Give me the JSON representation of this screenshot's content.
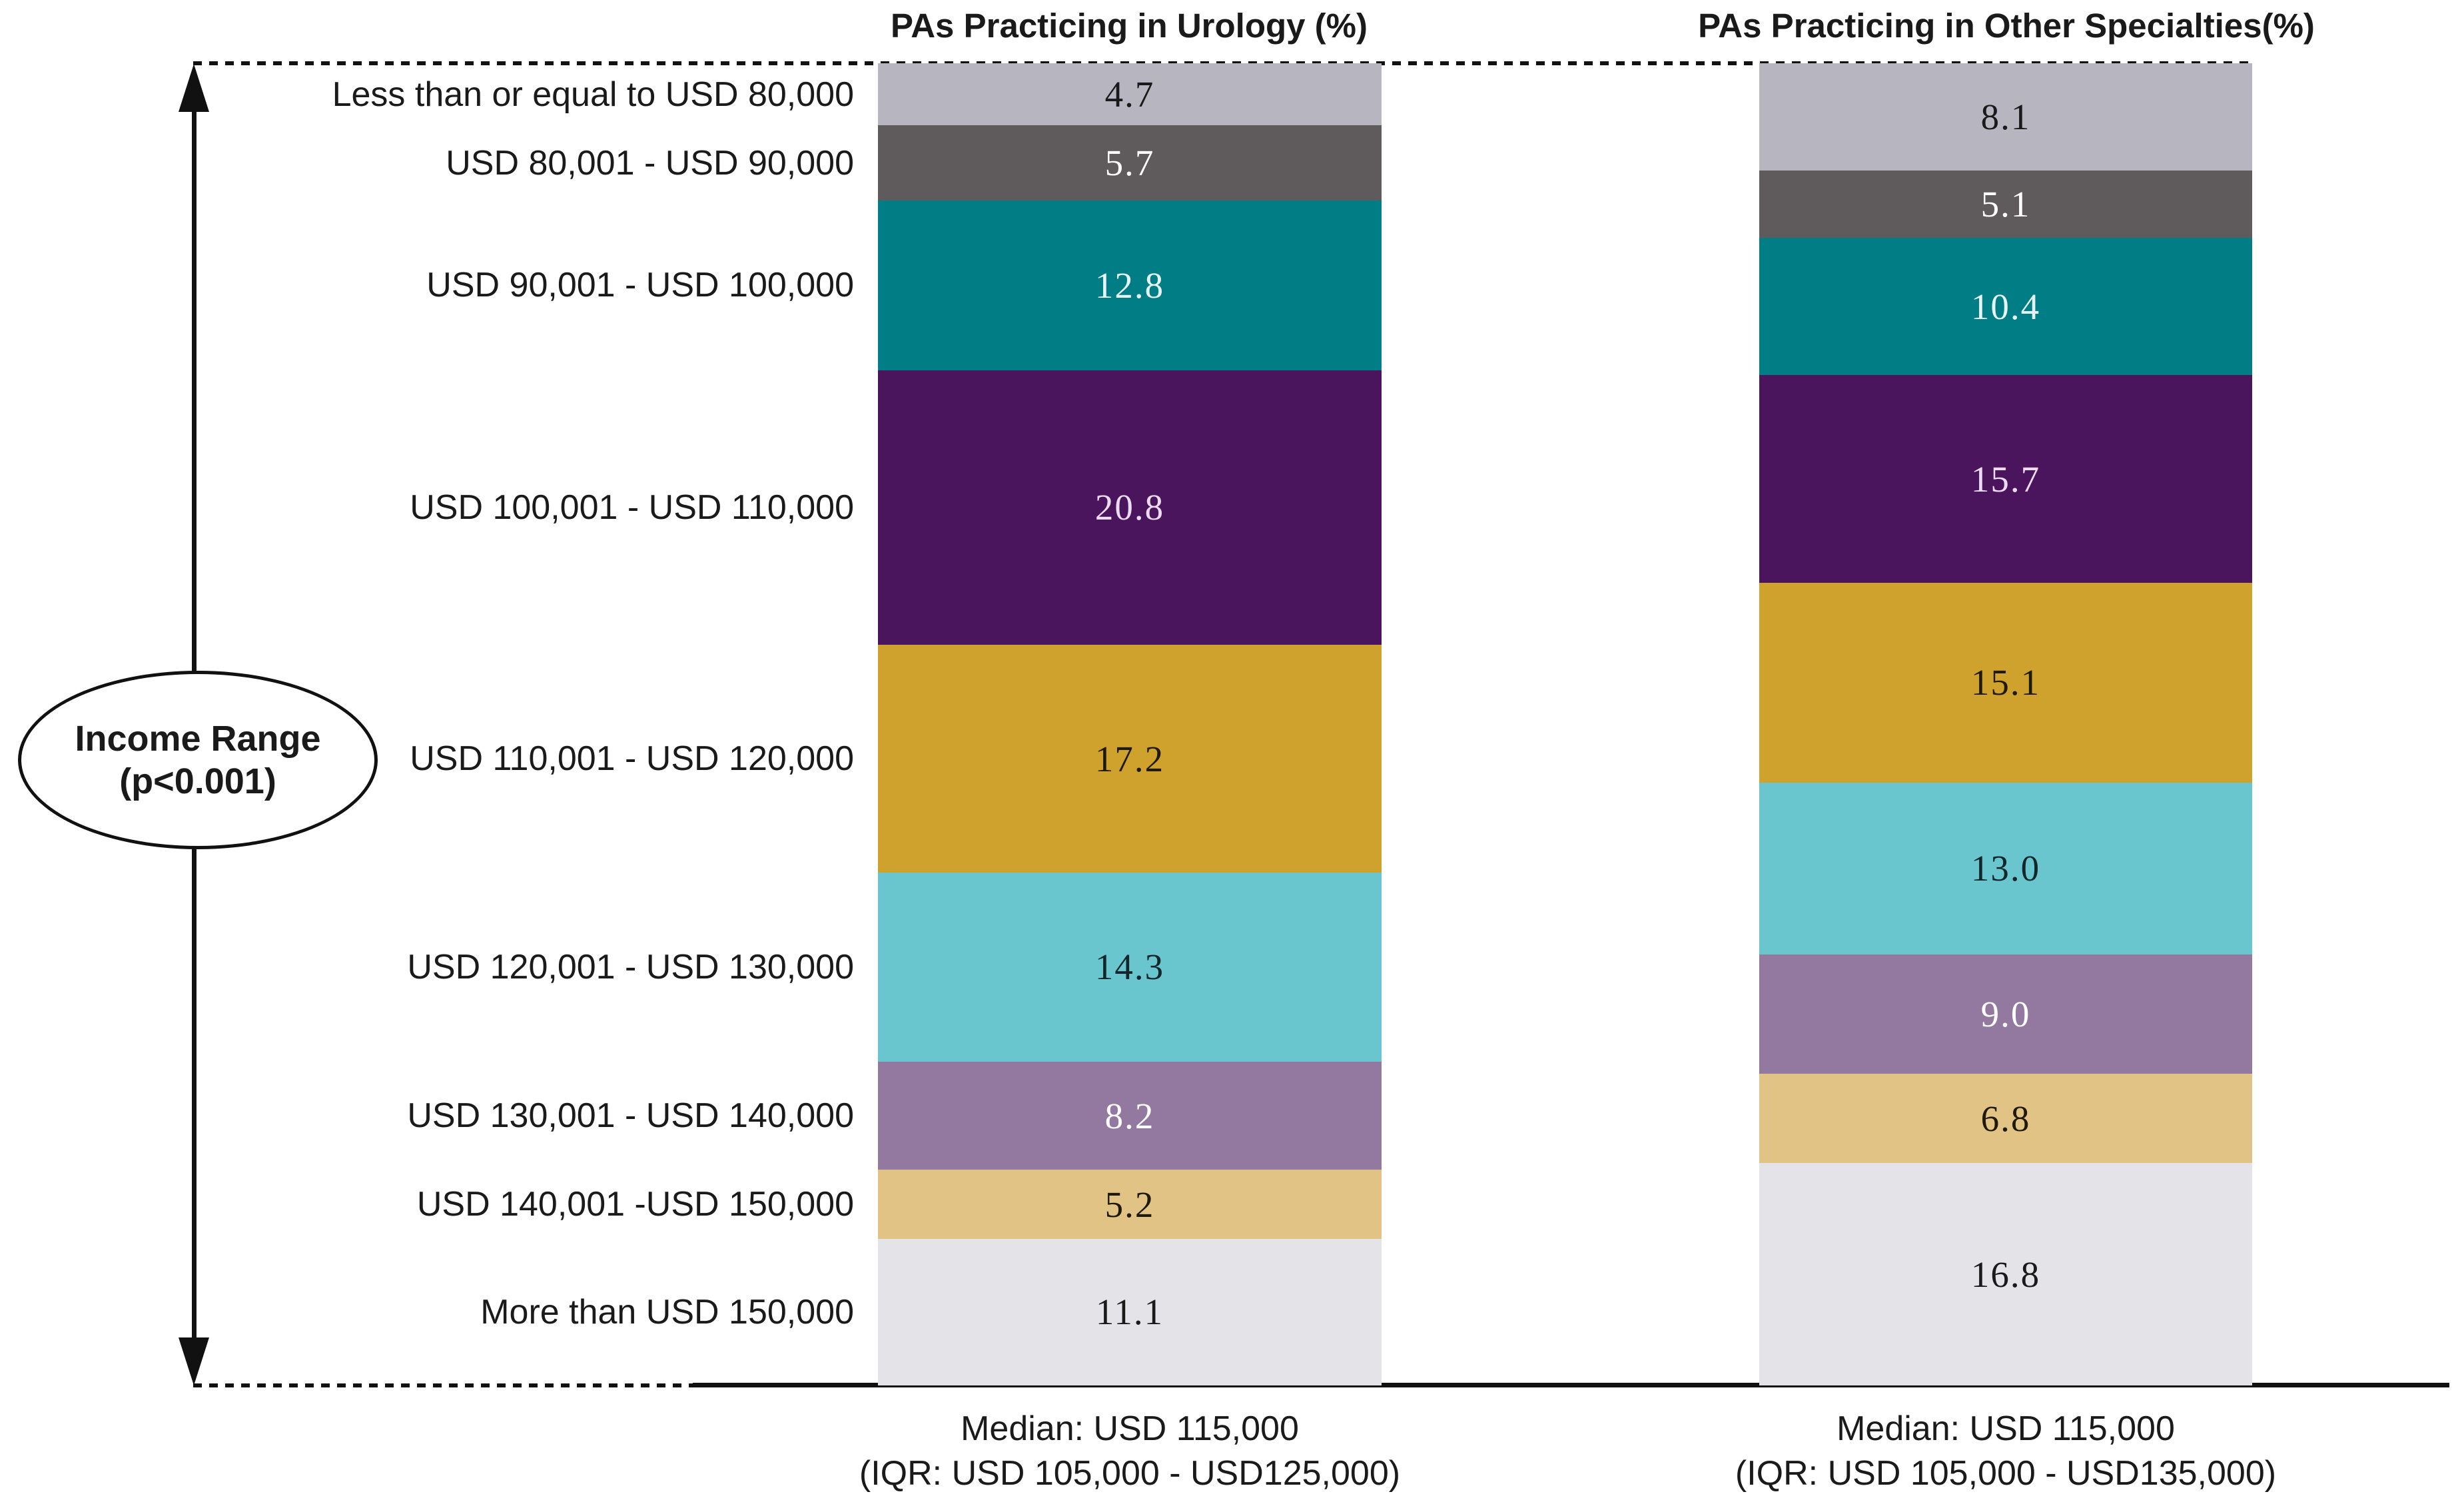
{
  "chart_data": {
    "type": "bar",
    "subtype": "100%-stacked-columns",
    "title": "",
    "xlabel": "",
    "ylabel": "Income Range (p<0.001)",
    "ylim": [
      0,
      100
    ],
    "grid": false,
    "legend": false,
    "row_header": {
      "line1": "Income Range",
      "line2": "(p<0.001)"
    },
    "categories": [
      "Less than or equal to USD 80,000",
      "USD 80,001 - USD 90,000",
      "USD 90,001 - USD 100,000",
      "USD 100,001 - USD 110,000",
      "USD 110,001 - USD 120,000",
      "USD 120,001 - USD 130,000",
      "USD 130,001 - USD 140,000",
      "USD 140,001 -USD 150,000",
      "More than USD 150,000"
    ],
    "series": [
      {
        "name": "PAs Practicing in Urology (%)",
        "values": [
          4.7,
          5.7,
          12.8,
          20.8,
          17.2,
          14.3,
          8.2,
          5.2,
          11.1
        ],
        "median_line1": "Median: USD 115,000",
        "median_line2": "(IQR: USD 105,000 - USD125,000)"
      },
      {
        "name": "PAs Practicing in Other Specialties(%)",
        "values": [
          8.1,
          5.1,
          10.4,
          15.7,
          15.1,
          13.0,
          9.0,
          6.8,
          16.8
        ],
        "median_line1": "Median: USD 115,000",
        "median_line2": "(IQR: USD 105,000 - USD135,000)"
      }
    ],
    "segment_colors": [
      "#b7b5bf",
      "#5f5b5c",
      "#007d85",
      "#4b155e",
      "#cfa22d",
      "#69c5ce",
      "#93789f",
      "#e2c386",
      "#e4e3e7"
    ],
    "segment_text_colors": [
      "#1a1a1a",
      "#ffffff",
      "#e8f5f6",
      "#ecdcf2",
      "#1f1a06",
      "#13272a",
      "#ffffff",
      "#1f1a06",
      "#1a1a1a"
    ],
    "value_format": "one-decimal"
  }
}
